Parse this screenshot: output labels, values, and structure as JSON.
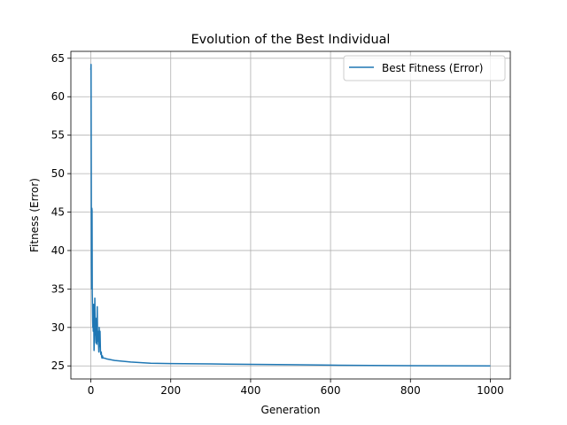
{
  "chart_data": {
    "type": "line",
    "title": "Evolution of the Best Individual",
    "xlabel": "Generation",
    "ylabel": "Fitness (Error)",
    "xlim": [
      -50,
      1050
    ],
    "ylim": [
      23.3,
      65.9
    ],
    "xticks": [
      0,
      200,
      400,
      600,
      800,
      1000
    ],
    "yticks": [
      25,
      30,
      35,
      40,
      45,
      50,
      55,
      60,
      65
    ],
    "xtick_labels": [
      "0",
      "200",
      "400",
      "600",
      "800",
      "1000"
    ],
    "ytick_labels": [
      "25",
      "30",
      "35",
      "40",
      "45",
      "50",
      "55",
      "60",
      "65"
    ],
    "grid": true,
    "legend": {
      "placement": "upper right",
      "entries": [
        "Best Fitness (Error)"
      ]
    },
    "series": [
      {
        "name": "Best Fitness (Error)",
        "color": "#1f77b4",
        "x": [
          0,
          0.5,
          1,
          1.5,
          2,
          2.5,
          3,
          3.5,
          4,
          4.5,
          5,
          5.5,
          6,
          7,
          8,
          9,
          10,
          11,
          12,
          13,
          14,
          15,
          16,
          17,
          18,
          19,
          20,
          21,
          22,
          23,
          24,
          25,
          26,
          27,
          28,
          29,
          30,
          32,
          35,
          40,
          50,
          60,
          80,
          100,
          150,
          200,
          300,
          400,
          500,
          600,
          700,
          800,
          900,
          1000
        ],
        "y": [
          63.5,
          64.2,
          52.0,
          38.0,
          35.0,
          45.5,
          45.2,
          34.5,
          33.0,
          31.0,
          30.0,
          31.5,
          29.5,
          33.0,
          27.0,
          28.5,
          33.8,
          29.0,
          30.2,
          28.0,
          31.2,
          27.8,
          32.7,
          28.2,
          29.5,
          28.0,
          26.8,
          30.0,
          27.5,
          29.5,
          27.0,
          26.5,
          26.8,
          26.2,
          26.0,
          26.3,
          26.1,
          26.0,
          26.0,
          25.9,
          25.8,
          25.7,
          25.6,
          25.5,
          25.35,
          25.3,
          25.25,
          25.2,
          25.15,
          25.1,
          25.05,
          25.02,
          25.01,
          25.0
        ]
      }
    ]
  }
}
